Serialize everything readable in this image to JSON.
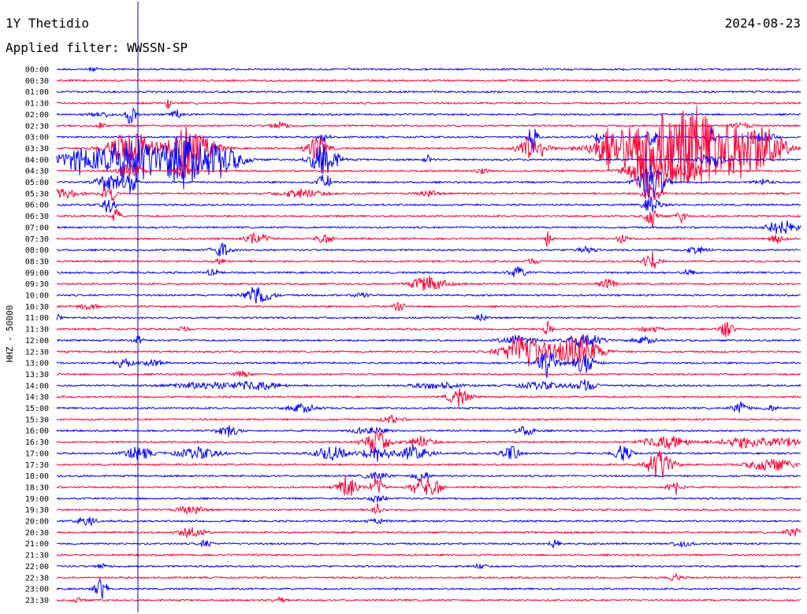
{
  "header": {
    "station": "1Y Thetidio",
    "date": "2024-08-23",
    "filter": "Applied filter: WWSSN-SP"
  },
  "chart_data": {
    "type": "helicorder",
    "ylabel": "HHZ - 50000",
    "colors": {
      "even": "#0000ff",
      "odd": "#ff0033"
    },
    "rows": [
      {
        "time": "00:00",
        "events": [
          {
            "at": 0.05,
            "amp": 2,
            "w": 0.005
          }
        ]
      },
      {
        "time": "00:30",
        "events": []
      },
      {
        "time": "01:00",
        "events": []
      },
      {
        "time": "01:30",
        "events": [
          {
            "at": 0.15,
            "amp": 8,
            "w": 0.002
          }
        ]
      },
      {
        "time": "02:00",
        "events": [
          {
            "at": 0.06,
            "amp": 3,
            "w": 0.01
          },
          {
            "at": 0.1,
            "amp": 16,
            "w": 0.004
          },
          {
            "at": 0.16,
            "amp": 6,
            "w": 0.005
          }
        ]
      },
      {
        "time": "02:30",
        "events": [
          {
            "at": 0.06,
            "amp": 5,
            "w": 0.003
          },
          {
            "at": 0.3,
            "amp": 4,
            "w": 0.008
          },
          {
            "at": 0.92,
            "amp": 3,
            "w": 0.01
          }
        ]
      },
      {
        "time": "03:00",
        "events": [
          {
            "at": 0.36,
            "amp": 10,
            "w": 0.004
          },
          {
            "at": 0.64,
            "amp": 16,
            "w": 0.004
          },
          {
            "at": 0.73,
            "amp": 6,
            "w": 0.006
          },
          {
            "at": 0.8,
            "amp": 14,
            "w": 0.004
          },
          {
            "at": 0.88,
            "amp": 12,
            "w": 0.004
          },
          {
            "at": 0.95,
            "amp": 6,
            "w": 0.01
          }
        ]
      },
      {
        "time": "03:30",
        "events": [
          {
            "at": 0.1,
            "amp": 22,
            "w": 0.02
          },
          {
            "at": 0.18,
            "amp": 28,
            "w": 0.02
          },
          {
            "at": 0.35,
            "amp": 16,
            "w": 0.01
          },
          {
            "at": 0.64,
            "amp": 18,
            "w": 0.012
          },
          {
            "at": 0.74,
            "amp": 16,
            "w": 0.01
          },
          {
            "at": 0.8,
            "amp": 38,
            "w": 0.04
          },
          {
            "at": 0.86,
            "amp": 30,
            "w": 0.03
          },
          {
            "at": 0.92,
            "amp": 24,
            "w": 0.03
          },
          {
            "at": 0.95,
            "amp": 14,
            "w": 0.02
          }
        ]
      },
      {
        "time": "04:00",
        "events": [
          {
            "at": 0.03,
            "amp": 14,
            "w": 0.02
          },
          {
            "at": 0.1,
            "amp": 32,
            "w": 0.025
          },
          {
            "at": 0.17,
            "amp": 30,
            "w": 0.02
          },
          {
            "at": 0.22,
            "amp": 18,
            "w": 0.02
          },
          {
            "at": 0.36,
            "amp": 22,
            "w": 0.012
          },
          {
            "at": 0.5,
            "amp": 4,
            "w": 0.004
          },
          {
            "at": 0.88,
            "amp": 10,
            "w": 0.01
          }
        ]
      },
      {
        "time": "04:30",
        "events": [
          {
            "at": 0.1,
            "amp": 10,
            "w": 0.01
          },
          {
            "at": 0.17,
            "amp": 14,
            "w": 0.006
          },
          {
            "at": 0.57,
            "amp": 4,
            "w": 0.006
          },
          {
            "at": 0.8,
            "amp": 30,
            "w": 0.02
          },
          {
            "at": 0.85,
            "amp": 14,
            "w": 0.01
          }
        ]
      },
      {
        "time": "05:00",
        "events": [
          {
            "at": 0.07,
            "amp": 14,
            "w": 0.01
          },
          {
            "at": 0.1,
            "amp": 14,
            "w": 0.006
          },
          {
            "at": 0.36,
            "amp": 10,
            "w": 0.006
          },
          {
            "at": 0.8,
            "amp": 24,
            "w": 0.012
          },
          {
            "at": 0.95,
            "amp": 3,
            "w": 0.008
          }
        ]
      },
      {
        "time": "05:30",
        "events": [
          {
            "at": 0.01,
            "amp": 5,
            "w": 0.015
          },
          {
            "at": 0.07,
            "amp": 14,
            "w": 0.006
          },
          {
            "at": 0.33,
            "amp": 5,
            "w": 0.02
          },
          {
            "at": 0.5,
            "amp": 3,
            "w": 0.01
          },
          {
            "at": 0.8,
            "amp": 14,
            "w": 0.008
          }
        ]
      },
      {
        "time": "06:00",
        "events": [
          {
            "at": 0.07,
            "amp": 10,
            "w": 0.006
          },
          {
            "at": 0.8,
            "amp": 10,
            "w": 0.008
          }
        ]
      },
      {
        "time": "06:30",
        "events": [
          {
            "at": 0.08,
            "amp": 8,
            "w": 0.004
          },
          {
            "at": 0.8,
            "amp": 12,
            "w": 0.006
          },
          {
            "at": 0.84,
            "amp": 6,
            "w": 0.005
          }
        ]
      },
      {
        "time": "07:00",
        "events": [
          {
            "at": 0.97,
            "amp": 8,
            "w": 0.012
          },
          {
            "at": 0.99,
            "amp": 4,
            "w": 0.01
          }
        ]
      },
      {
        "time": "07:30",
        "events": [
          {
            "at": 0.27,
            "amp": 7,
            "w": 0.01
          },
          {
            "at": 0.36,
            "amp": 6,
            "w": 0.008
          },
          {
            "at": 0.66,
            "amp": 8,
            "w": 0.004
          },
          {
            "at": 0.76,
            "amp": 5,
            "w": 0.005
          },
          {
            "at": 0.97,
            "amp": 5,
            "w": 0.008
          }
        ]
      },
      {
        "time": "08:00",
        "events": [
          {
            "at": 0.22,
            "amp": 10,
            "w": 0.008
          },
          {
            "at": 0.71,
            "amp": 3,
            "w": 0.01
          },
          {
            "at": 0.86,
            "amp": 4,
            "w": 0.01
          }
        ]
      },
      {
        "time": "08:30",
        "events": [
          {
            "at": 0.22,
            "amp": 3,
            "w": 0.006
          },
          {
            "at": 0.8,
            "amp": 10,
            "w": 0.008
          },
          {
            "at": 0.64,
            "amp": 3,
            "w": 0.006
          }
        ]
      },
      {
        "time": "09:00",
        "events": [
          {
            "at": 0.21,
            "amp": 4,
            "w": 0.006
          },
          {
            "at": 0.62,
            "amp": 6,
            "w": 0.008
          },
          {
            "at": 0.85,
            "amp": 4,
            "w": 0.005
          }
        ]
      },
      {
        "time": "09:30",
        "events": [
          {
            "at": 0.5,
            "amp": 10,
            "w": 0.015
          },
          {
            "at": 0.74,
            "amp": 6,
            "w": 0.008
          }
        ]
      },
      {
        "time": "10:00",
        "events": [
          {
            "at": 0.27,
            "amp": 12,
            "w": 0.012
          },
          {
            "at": 0.41,
            "amp": 4,
            "w": 0.006
          }
        ]
      },
      {
        "time": "10:30",
        "events": [
          {
            "at": 0.04,
            "amp": 3,
            "w": 0.01
          },
          {
            "at": 0.46,
            "amp": 5,
            "w": 0.005
          }
        ]
      },
      {
        "time": "11:00",
        "events": [
          {
            "at": 0.0,
            "amp": 4,
            "w": 0.004
          },
          {
            "at": 0.57,
            "amp": 4,
            "w": 0.005
          }
        ]
      },
      {
        "time": "11:30",
        "events": [
          {
            "at": 0.17,
            "amp": 3,
            "w": 0.005
          },
          {
            "at": 0.66,
            "amp": 8,
            "w": 0.004
          },
          {
            "at": 0.8,
            "amp": 3,
            "w": 0.01
          },
          {
            "at": 0.9,
            "amp": 10,
            "w": 0.006
          }
        ]
      },
      {
        "time": "12:00",
        "events": [
          {
            "at": 0.11,
            "amp": 5,
            "w": 0.004
          },
          {
            "at": 0.62,
            "amp": 6,
            "w": 0.015
          },
          {
            "at": 0.71,
            "amp": 10,
            "w": 0.015
          },
          {
            "at": 0.79,
            "amp": 4,
            "w": 0.01
          }
        ]
      },
      {
        "time": "12:30",
        "events": [
          {
            "at": 0.63,
            "amp": 22,
            "w": 0.02
          },
          {
            "at": 0.7,
            "amp": 20,
            "w": 0.02
          }
        ]
      },
      {
        "time": "13:00",
        "events": [
          {
            "at": 0.09,
            "amp": 6,
            "w": 0.008
          },
          {
            "at": 0.13,
            "amp": 4,
            "w": 0.008
          },
          {
            "at": 0.66,
            "amp": 14,
            "w": 0.01
          },
          {
            "at": 0.71,
            "amp": 12,
            "w": 0.01
          }
        ]
      },
      {
        "time": "13:30",
        "events": [
          {
            "at": 0.25,
            "amp": 3,
            "w": 0.008
          }
        ]
      },
      {
        "time": "14:00",
        "events": [
          {
            "at": 0.2,
            "amp": 4,
            "w": 0.03
          },
          {
            "at": 0.27,
            "amp": 5,
            "w": 0.02
          },
          {
            "at": 0.51,
            "amp": 4,
            "w": 0.02
          },
          {
            "at": 0.65,
            "amp": 4,
            "w": 0.02
          },
          {
            "at": 0.71,
            "amp": 6,
            "w": 0.012
          }
        ]
      },
      {
        "time": "14:30",
        "events": [
          {
            "at": 0.54,
            "amp": 10,
            "w": 0.01
          }
        ]
      },
      {
        "time": "15:00",
        "events": [
          {
            "at": 0.33,
            "amp": 5,
            "w": 0.012
          },
          {
            "at": 0.92,
            "amp": 6,
            "w": 0.008
          },
          {
            "at": 0.96,
            "amp": 4,
            "w": 0.006
          }
        ]
      },
      {
        "time": "15:30",
        "events": [
          {
            "at": 0.45,
            "amp": 4,
            "w": 0.01
          }
        ]
      },
      {
        "time": "16:00",
        "events": [
          {
            "at": 0.23,
            "amp": 6,
            "w": 0.01
          },
          {
            "at": 0.42,
            "amp": 4,
            "w": 0.015
          },
          {
            "at": 0.63,
            "amp": 5,
            "w": 0.01
          }
        ]
      },
      {
        "time": "16:30",
        "events": [
          {
            "at": 0.43,
            "amp": 14,
            "w": 0.012
          },
          {
            "at": 0.49,
            "amp": 6,
            "w": 0.012
          },
          {
            "at": 0.82,
            "amp": 8,
            "w": 0.02
          },
          {
            "at": 0.92,
            "amp": 6,
            "w": 0.02
          },
          {
            "at": 0.97,
            "amp": 6,
            "w": 0.02
          }
        ]
      },
      {
        "time": "17:00",
        "events": [
          {
            "at": 0.11,
            "amp": 8,
            "w": 0.012
          },
          {
            "at": 0.19,
            "amp": 6,
            "w": 0.02
          },
          {
            "at": 0.37,
            "amp": 8,
            "w": 0.015
          },
          {
            "at": 0.43,
            "amp": 10,
            "w": 0.012
          },
          {
            "at": 0.48,
            "amp": 8,
            "w": 0.015
          },
          {
            "at": 0.61,
            "amp": 10,
            "w": 0.008
          },
          {
            "at": 0.76,
            "amp": 10,
            "w": 0.008
          }
        ]
      },
      {
        "time": "17:30",
        "events": [
          {
            "at": 0.81,
            "amp": 18,
            "w": 0.012
          },
          {
            "at": 0.96,
            "amp": 8,
            "w": 0.02
          }
        ]
      },
      {
        "time": "18:00",
        "events": [
          {
            "at": 0.43,
            "amp": 5,
            "w": 0.01
          },
          {
            "at": 0.49,
            "amp": 6,
            "w": 0.008
          }
        ]
      },
      {
        "time": "18:30",
        "events": [
          {
            "at": 0.39,
            "amp": 16,
            "w": 0.008
          },
          {
            "at": 0.43,
            "amp": 14,
            "w": 0.006
          },
          {
            "at": 0.49,
            "amp": 16,
            "w": 0.008
          },
          {
            "at": 0.51,
            "amp": 10,
            "w": 0.006
          },
          {
            "at": 0.83,
            "amp": 10,
            "w": 0.006
          }
        ]
      },
      {
        "time": "19:00",
        "events": [
          {
            "at": 0.43,
            "amp": 4,
            "w": 0.008
          }
        ]
      },
      {
        "time": "19:30",
        "events": [
          {
            "at": 0.18,
            "amp": 5,
            "w": 0.012
          },
          {
            "at": 0.43,
            "amp": 6,
            "w": 0.006
          }
        ]
      },
      {
        "time": "20:00",
        "events": [
          {
            "at": 0.04,
            "amp": 6,
            "w": 0.008
          },
          {
            "at": 0.43,
            "amp": 3,
            "w": 0.008
          }
        ]
      },
      {
        "time": "20:30",
        "events": [
          {
            "at": 0.18,
            "amp": 6,
            "w": 0.012
          },
          {
            "at": 0.99,
            "amp": 5,
            "w": 0.008
          }
        ]
      },
      {
        "time": "21:00",
        "events": [
          {
            "at": 0.2,
            "amp": 4,
            "w": 0.006
          },
          {
            "at": 0.67,
            "amp": 6,
            "w": 0.005
          },
          {
            "at": 0.84,
            "amp": 3,
            "w": 0.01
          }
        ]
      },
      {
        "time": "21:30",
        "events": []
      },
      {
        "time": "22:00",
        "events": [
          {
            "at": 0.06,
            "amp": 4,
            "w": 0.004
          },
          {
            "at": 0.57,
            "amp": 3,
            "w": 0.006
          }
        ]
      },
      {
        "time": "22:30",
        "events": [
          {
            "at": 0.83,
            "amp": 5,
            "w": 0.005
          }
        ]
      },
      {
        "time": "23:00",
        "events": [
          {
            "at": 0.06,
            "amp": 12,
            "w": 0.006
          }
        ]
      },
      {
        "time": "23:30",
        "events": [
          {
            "at": 0.03,
            "amp": 4,
            "w": 0.004
          },
          {
            "at": 0.3,
            "amp": 3,
            "w": 0.006
          }
        ]
      }
    ]
  }
}
